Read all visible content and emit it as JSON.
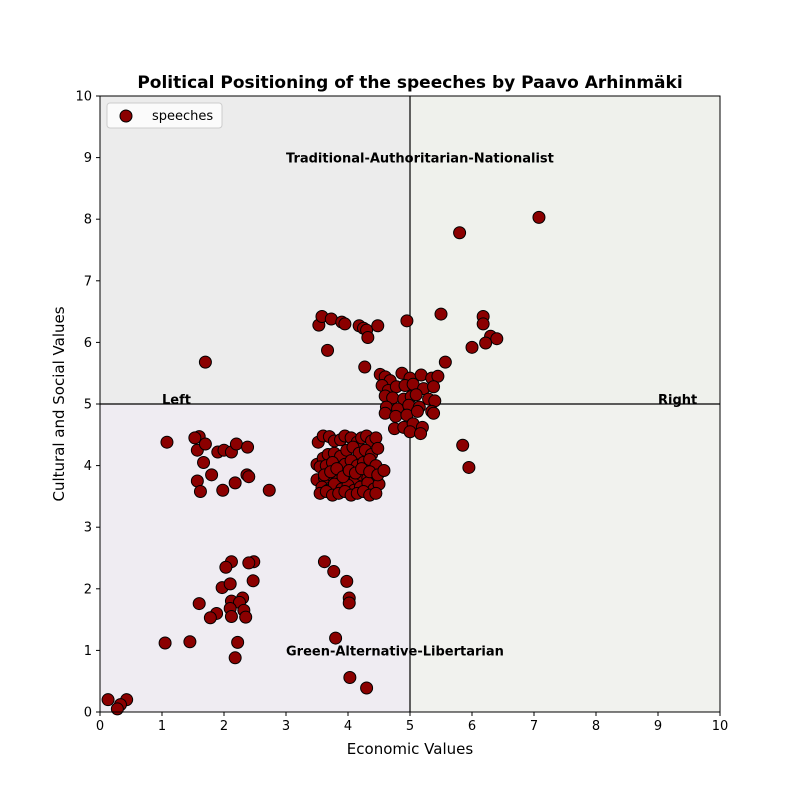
{
  "chart_data": {
    "type": "scatter",
    "title": "Political Positioning of the speeches by Paavo Arhinmäki",
    "xlabel": "Economic Values",
    "ylabel": "Cultural and Social Values",
    "xlim": [
      0,
      10
    ],
    "ylim": [
      0,
      10
    ],
    "x_ticks": [
      "0",
      "1",
      "2",
      "3",
      "4",
      "5",
      "6",
      "7",
      "8",
      "9",
      "10"
    ],
    "y_ticks": [
      "0",
      "1",
      "2",
      "3",
      "4",
      "5",
      "6",
      "7",
      "8",
      "9",
      "10"
    ],
    "grid": false,
    "legend": {
      "placement": "top-left",
      "entries": [
        "speeches"
      ]
    },
    "reference_lines": {
      "x": 5,
      "y": 5
    },
    "annotations": {
      "top": "Traditional-Authoritarian-Nationalist",
      "bottom": "Green-Alternative-Libertarian",
      "left": "Left",
      "right": "Right"
    },
    "quadrant_colors": {
      "top_left": "#ececec",
      "top_right": "#eff1ec",
      "bottom_left": "#efecf2",
      "bottom_right": "#f1f2ee"
    },
    "marker_color": "#8b0000",
    "marker_edge": "#000000",
    "series": [
      {
        "name": "speeches",
        "x": [
          7.08,
          5.8,
          5.5,
          6.18,
          6.18,
          6.3,
          6.4,
          6.22,
          6.0,
          4.95,
          3.53,
          3.58,
          3.73,
          3.9,
          3.95,
          4.18,
          4.25,
          4.3,
          4.32,
          4.48,
          3.67,
          4.27,
          1.7,
          5.57,
          4.52,
          4.6,
          4.68,
          4.87,
          5.0,
          5.18,
          5.35,
          5.45,
          4.55,
          4.65,
          4.78,
          4.92,
          5.05,
          5.22,
          5.38,
          4.6,
          4.72,
          4.9,
          5.02,
          5.1,
          5.3,
          5.4,
          4.62,
          4.8,
          4.98,
          5.15,
          5.35,
          4.6,
          4.77,
          4.95,
          5.12,
          5.38,
          4.75,
          4.9,
          5.05,
          5.2,
          5.0,
          5.17,
          1.08,
          1.6,
          1.53,
          1.57,
          1.7,
          1.9,
          2.0,
          2.12,
          2.2,
          2.38,
          1.57,
          1.67,
          1.62,
          1.8,
          1.98,
          2.18,
          2.37,
          2.4,
          2.73,
          3.52,
          3.6,
          3.7,
          3.78,
          3.88,
          3.95,
          4.05,
          4.15,
          4.22,
          4.3,
          4.38,
          4.45,
          3.5,
          3.6,
          3.68,
          3.78,
          3.88,
          3.98,
          4.08,
          4.18,
          4.28,
          4.38,
          4.48,
          3.55,
          3.65,
          3.75,
          3.85,
          3.95,
          4.05,
          4.15,
          4.25,
          4.35,
          4.45,
          3.5,
          3.62,
          3.72,
          3.82,
          3.92,
          4.02,
          4.12,
          4.22,
          4.32,
          4.42,
          3.58,
          3.68,
          3.78,
          3.9,
          4.0,
          4.1,
          4.2,
          4.32,
          4.42,
          4.5,
          3.55,
          3.65,
          3.75,
          3.85,
          3.95,
          4.05,
          4.15,
          4.25,
          4.35,
          4.45,
          3.62,
          3.72,
          3.82,
          3.92,
          4.02,
          4.12,
          4.22,
          4.35,
          4.48,
          4.58,
          5.85,
          5.95,
          2.12,
          2.48,
          2.4,
          1.97,
          2.03,
          2.47,
          2.1,
          2.3,
          1.6,
          2.12,
          2.25,
          2.32,
          1.88,
          1.78,
          2.1,
          2.35,
          2.12,
          2.22,
          2.18,
          1.05,
          1.45,
          3.62,
          3.77,
          3.98,
          4.02,
          4.02,
          3.8,
          4.03,
          4.3,
          0.13,
          0.43,
          0.33,
          0.28
        ],
        "y": [
          8.03,
          7.78,
          6.46,
          6.42,
          6.3,
          6.1,
          6.06,
          5.99,
          5.92,
          6.35,
          6.28,
          6.42,
          6.38,
          6.33,
          6.3,
          6.27,
          6.23,
          6.2,
          6.08,
          6.27,
          5.87,
          5.6,
          5.68,
          5.68,
          5.48,
          5.44,
          5.38,
          5.5,
          5.42,
          5.47,
          5.42,
          5.45,
          5.3,
          5.22,
          5.28,
          5.3,
          5.32,
          5.25,
          5.28,
          5.13,
          5.1,
          5.08,
          5.12,
          5.15,
          5.08,
          5.05,
          4.95,
          4.92,
          4.98,
          4.95,
          4.88,
          4.85,
          4.8,
          4.82,
          4.88,
          4.85,
          4.6,
          4.62,
          4.68,
          4.62,
          4.55,
          4.52,
          4.38,
          4.47,
          4.45,
          4.25,
          4.35,
          4.22,
          4.25,
          4.22,
          4.35,
          4.3,
          3.75,
          4.05,
          3.58,
          3.85,
          3.6,
          3.72,
          3.85,
          3.82,
          3.6,
          4.38,
          4.48,
          4.47,
          4.4,
          4.42,
          4.48,
          4.45,
          4.38,
          4.45,
          4.48,
          4.4,
          4.45,
          4.02,
          4.12,
          4.18,
          4.2,
          4.15,
          4.25,
          4.3,
          4.2,
          4.25,
          4.18,
          4.28,
          3.98,
          4.0,
          4.05,
          3.95,
          4.02,
          4.08,
          4.0,
          4.05,
          4.1,
          4.0,
          3.77,
          3.8,
          3.85,
          3.75,
          3.82,
          3.9,
          3.78,
          3.85,
          3.8,
          3.75,
          3.65,
          3.6,
          3.7,
          3.62,
          3.68,
          3.6,
          3.65,
          3.72,
          3.62,
          3.7,
          3.55,
          3.58,
          3.52,
          3.55,
          3.58,
          3.52,
          3.55,
          3.58,
          3.52,
          3.55,
          3.85,
          3.9,
          3.95,
          3.82,
          3.92,
          3.88,
          3.95,
          3.9,
          3.85,
          3.92,
          4.33,
          3.97,
          2.44,
          2.44,
          2.42,
          2.02,
          2.35,
          2.13,
          2.08,
          1.85,
          1.76,
          1.8,
          1.78,
          1.65,
          1.6,
          1.53,
          1.68,
          1.54,
          1.55,
          1.13,
          0.88,
          1.12,
          1.14,
          2.44,
          2.28,
          2.12,
          1.85,
          1.77,
          1.2,
          0.56,
          0.39,
          0.2,
          0.2,
          0.12,
          0.05
        ]
      }
    ]
  }
}
